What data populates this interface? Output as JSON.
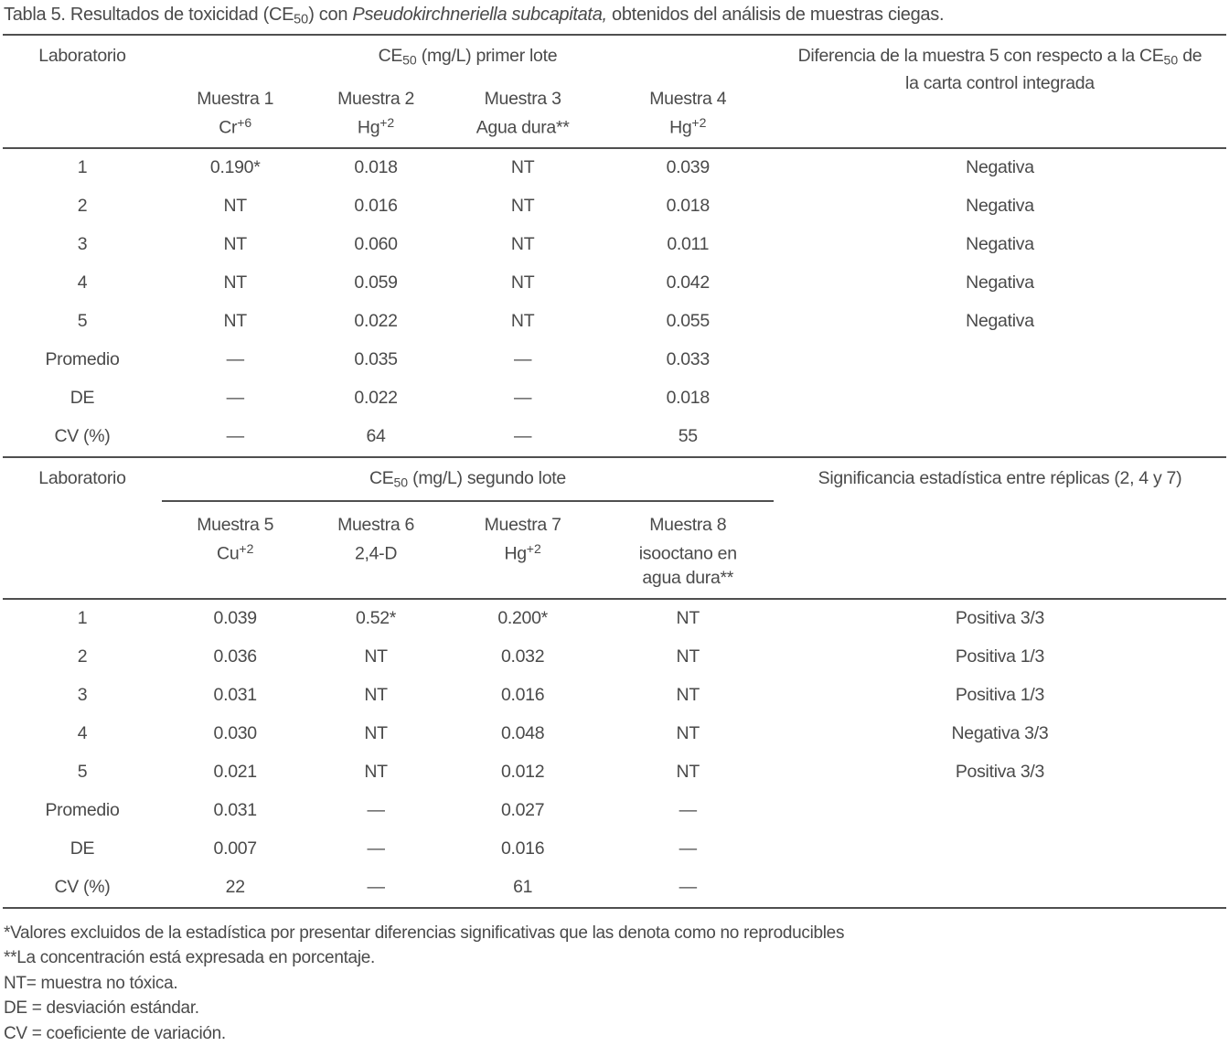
{
  "title": {
    "pre": "Tabla 5. Resultados de toxicidad (CE",
    "sub": "50",
    "mid": ") con ",
    "species": "Pseudokirchneriella subcapitata,",
    "post": " obtenidos del análisis de muestras ciegas."
  },
  "colors": {
    "text": "#4a4a4a",
    "rule": "#4f4f4f",
    "background": "#ffffff"
  },
  "table1": {
    "lab_header": "Laboratorio",
    "group": {
      "pre": "CE",
      "sub": "50",
      "post": " (mg/L) primer lote"
    },
    "diff_header": {
      "pre": "Diferencia de la muestra 5 con respecto a la CE",
      "sub": "50",
      "post": " de la carta control integrada"
    },
    "cols": [
      {
        "name": "Muestra 1",
        "base": "Cr",
        "sup": "+6"
      },
      {
        "name": "Muestra 2",
        "base": "Hg",
        "sup": "+2"
      },
      {
        "name": "Muestra 3",
        "base": "Agua dura**"
      },
      {
        "name": "Muestra 4",
        "base": "Hg",
        "sup": "+2"
      }
    ],
    "rows": [
      {
        "label": "1",
        "v": [
          "0.190*",
          "0.018",
          "NT",
          "0.039"
        ],
        "note": "Negativa"
      },
      {
        "label": "2",
        "v": [
          "NT",
          "0.016",
          "NT",
          "0.018"
        ],
        "note": "Negativa"
      },
      {
        "label": "3",
        "v": [
          "NT",
          "0.060",
          "NT",
          "0.011"
        ],
        "note": "Negativa"
      },
      {
        "label": "4",
        "v": [
          "NT",
          "0.059",
          "NT",
          "0.042"
        ],
        "note": "Negativa"
      },
      {
        "label": "5",
        "v": [
          "NT",
          "0.022",
          "NT",
          "0.055"
        ],
        "note": "Negativa"
      },
      {
        "label": "Promedio",
        "v": [
          "—",
          "0.035",
          "—",
          "0.033"
        ],
        "note": ""
      },
      {
        "label": "DE",
        "v": [
          "—",
          "0.022",
          "—",
          "0.018"
        ],
        "note": ""
      },
      {
        "label": "CV (%)",
        "v": [
          "—",
          "64",
          "—",
          "55"
        ],
        "note": ""
      }
    ]
  },
  "table2": {
    "lab_header": "Laboratorio",
    "group": {
      "pre": "CE",
      "sub": "50",
      "post": " (mg/L) segundo lote"
    },
    "sig_header": "Significancia estadística entre réplicas (2, 4 y 7)",
    "cols": [
      {
        "name": "Muestra 5",
        "base": "Cu",
        "sup": "+2"
      },
      {
        "name": "Muestra 6",
        "base": "2,4-D"
      },
      {
        "name": "Muestra 7",
        "base": "Hg",
        "sup": "+2"
      },
      {
        "name": "Muestra 8",
        "base": "isooctano en",
        "base2": "agua dura**"
      }
    ],
    "rows": [
      {
        "label": "1",
        "v": [
          "0.039",
          "0.52*",
          "0.200*",
          "NT"
        ],
        "note": "Positiva 3/3"
      },
      {
        "label": "2",
        "v": [
          "0.036",
          "NT",
          "0.032",
          "NT"
        ],
        "note": "Positiva 1/3"
      },
      {
        "label": "3",
        "v": [
          "0.031",
          "NT",
          "0.016",
          "NT"
        ],
        "note": "Positiva 1/3"
      },
      {
        "label": "4",
        "v": [
          "0.030",
          "NT",
          "0.048",
          "NT"
        ],
        "note": "Negativa 3/3"
      },
      {
        "label": "5",
        "v": [
          "0.021",
          "NT",
          "0.012",
          "NT"
        ],
        "note": "Positiva 3/3"
      },
      {
        "label": "Promedio",
        "v": [
          "0.031",
          "—",
          "0.027",
          "—"
        ],
        "note": ""
      },
      {
        "label": "DE",
        "v": [
          "0.007",
          "—",
          "0.016",
          "—"
        ],
        "note": ""
      },
      {
        "label": "CV (%)",
        "v": [
          "22",
          "—",
          "61",
          "—"
        ],
        "note": ""
      }
    ]
  },
  "footnotes": [
    "*Valores excluidos de la estadística por presentar diferencias significativas que las denota como no reproducibles",
    "**La concentración está expresada en porcentaje.",
    "NT= muestra no tóxica.",
    "DE = desviación estándar.",
    "CV = coeficiente de variación."
  ]
}
